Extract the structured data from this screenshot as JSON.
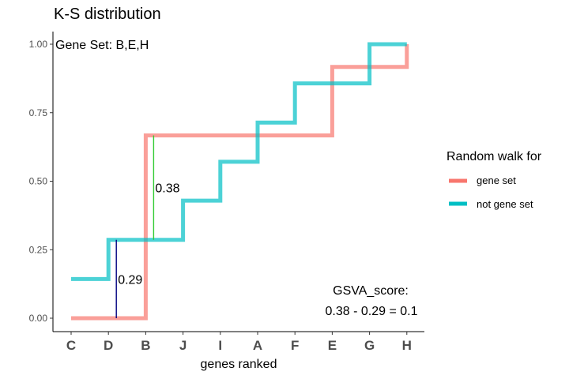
{
  "chart_data": {
    "type": "line",
    "title": "K-S distribution",
    "xlabel": "genes ranked",
    "ylabel": "",
    "categories": [
      "C",
      "D",
      "B",
      "J",
      "I",
      "A",
      "F",
      "E",
      "G",
      "H"
    ],
    "yticks": [
      "0.00",
      "0.25",
      "0.50",
      "0.75",
      "1.00"
    ],
    "ylim": [
      0,
      1
    ],
    "grid": false,
    "legend": {
      "title": "Random walk for",
      "position": "right",
      "items": [
        "gene set",
        "not gene set"
      ]
    },
    "series": [
      {
        "name": "gene set",
        "color": "#F8766D",
        "values": [
          0,
          0,
          0.667,
          0.667,
          0.667,
          0.667,
          0.667,
          0.917,
          0.917,
          1.0
        ]
      },
      {
        "name": "not gene set",
        "color": "#00BFC4",
        "values": [
          0.143,
          0.286,
          0.286,
          0.429,
          0.571,
          0.714,
          0.857,
          0.857,
          1.0,
          1.0
        ]
      }
    ],
    "annotations": {
      "gene_set_label": "Gene Set: B,E,H",
      "max_pos_value": "0.38",
      "max_neg_value": "0.29",
      "score_label": "GSVA_score:",
      "score_formula": "0.38 - 0.29 = 0.1",
      "max_pos_color": "#33CC33",
      "max_neg_color": "#000080"
    }
  }
}
